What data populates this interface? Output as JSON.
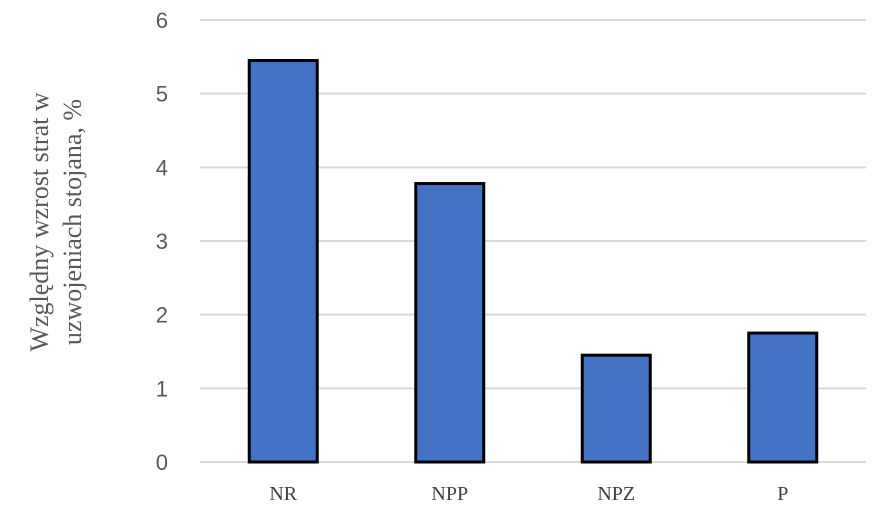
{
  "chart_data": {
    "type": "bar",
    "categories": [
      "NR",
      "NPP",
      "NPZ",
      "P"
    ],
    "values": [
      5.45,
      3.78,
      1.45,
      1.75
    ],
    "ylabel_lines": [
      "Względny wzrost strat w",
      "uzwojeniach stojana, %"
    ],
    "ylim": [
      0,
      6
    ],
    "yticks": [
      0,
      1,
      2,
      3,
      4,
      5,
      6
    ],
    "grid": true,
    "legend": "none",
    "colors": {
      "bar_fill": "#4472c4",
      "bar_stroke": "#000000",
      "grid": "#d9d9d9"
    }
  }
}
